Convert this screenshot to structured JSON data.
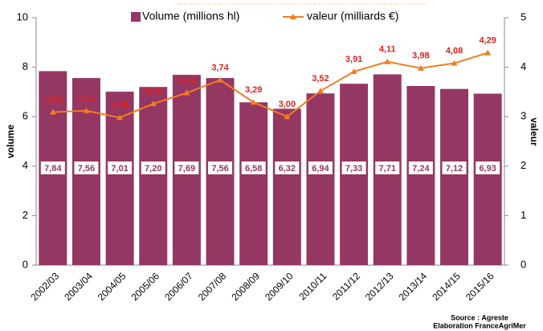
{
  "chart_data": {
    "type": "bar",
    "categories": [
      "2002/03",
      "2003/04",
      "2004/05",
      "2005/06",
      "2006/07",
      "2007/08",
      "2008/09",
      "2009/10",
      "2010/11",
      "2011/12",
      "2012/13",
      "2013/14",
      "2014/15",
      "2015/16"
    ],
    "series": [
      {
        "name": "Volume (millions hl)",
        "type": "bar",
        "color": "#943763",
        "values": [
          7.84,
          7.56,
          7.01,
          7.2,
          7.69,
          7.56,
          6.58,
          6.32,
          6.94,
          7.33,
          7.71,
          7.24,
          7.12,
          6.93
        ],
        "value_labels": [
          "7,84",
          "7,56",
          "7,01",
          "7,20",
          "7,69",
          "7,56",
          "6,58",
          "6,32",
          "6,94",
          "7,33",
          "7,71",
          "7,24",
          "7,12",
          "6,93"
        ]
      },
      {
        "name": "valeur (milliards €)",
        "type": "line",
        "axis": "y2",
        "color": "#f47c20",
        "label_color": "#e3201b",
        "values": [
          3.09,
          3.12,
          2.98,
          3.26,
          3.48,
          3.74,
          3.29,
          3.0,
          3.52,
          3.91,
          4.11,
          3.98,
          4.08,
          4.29
        ],
        "value_labels": [
          "3,09",
          "3,12",
          "2,98",
          "3,26",
          "3,48",
          "3,74",
          "3,29",
          "3,00",
          "3,52",
          "3,91",
          "4,11",
          "3,98",
          "4,08",
          "4,29"
        ]
      }
    ],
    "ylabel": "volume",
    "y2label": "valeur",
    "ylim": [
      0,
      10
    ],
    "yticks": [
      0,
      2,
      4,
      6,
      8,
      10
    ],
    "y2lim": [
      0,
      5
    ],
    "y2ticks": [
      0,
      1,
      2,
      3,
      4,
      5
    ],
    "source": [
      "Source : Agreste",
      "Elaboration FranceAgriMer"
    ]
  }
}
